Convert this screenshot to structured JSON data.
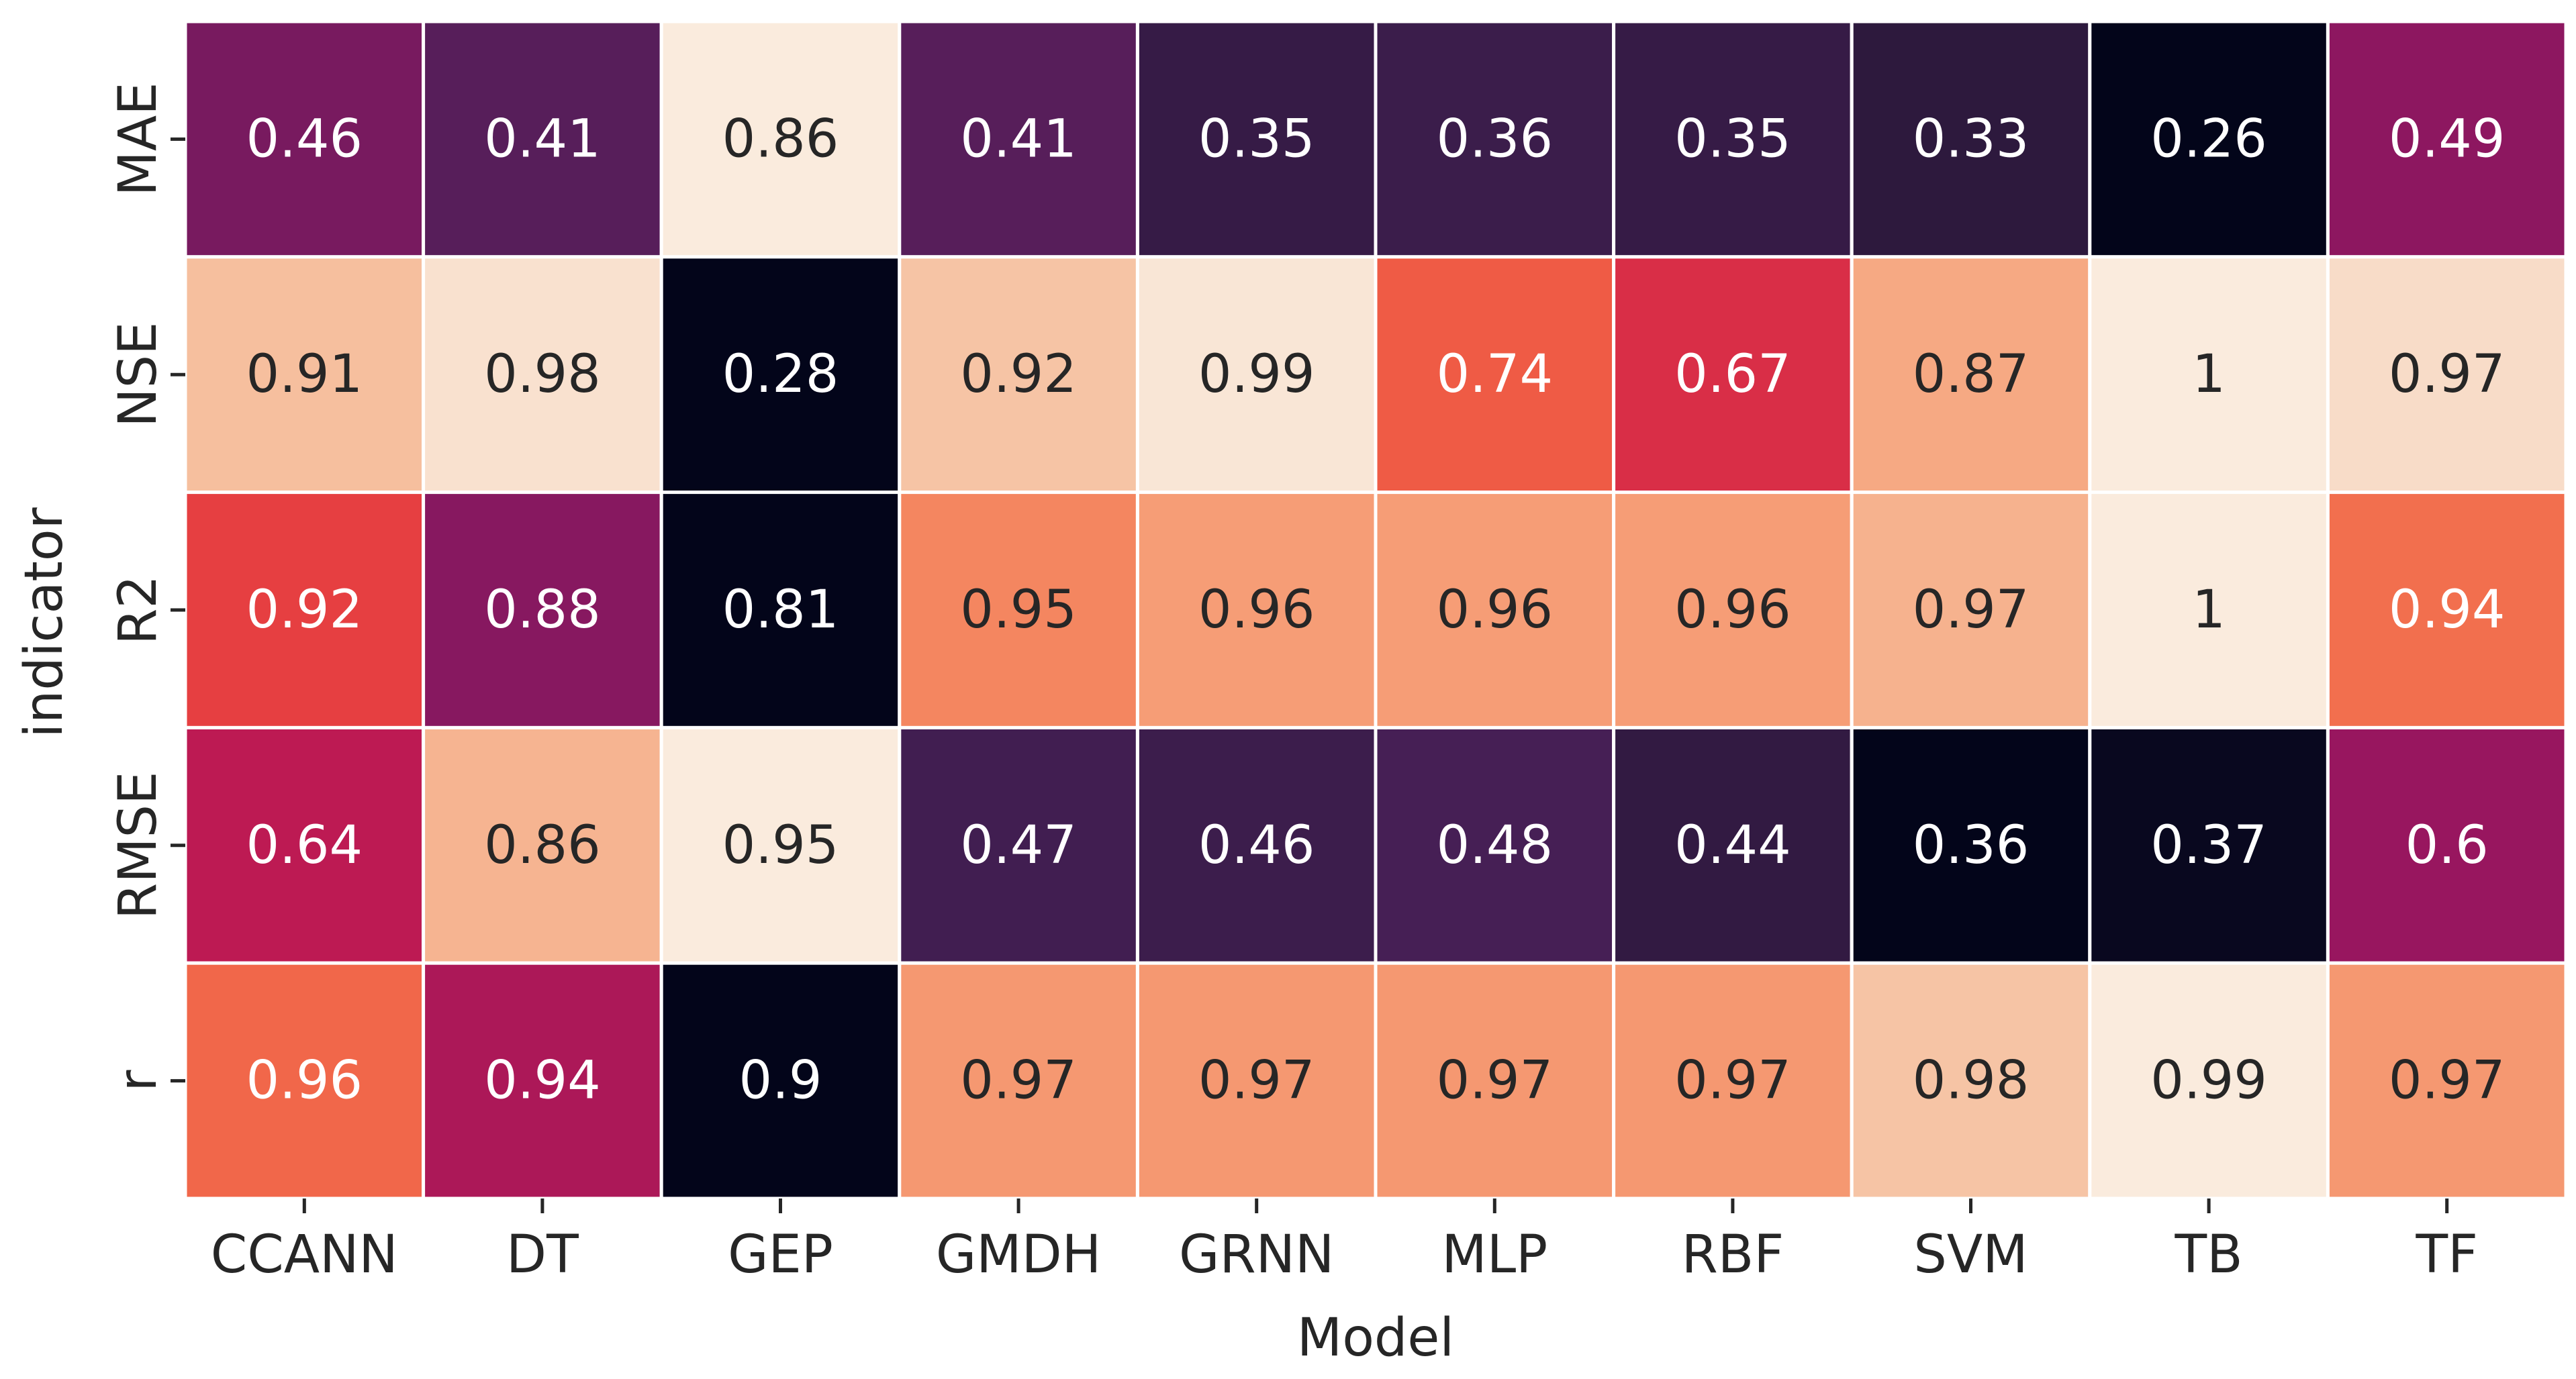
{
  "chart_data": {
    "type": "heatmap",
    "title": "",
    "xlabel": "Model",
    "ylabel": "indicator",
    "x_categories": [
      "CCANN",
      "DT",
      "GEP",
      "GMDH",
      "GRNN",
      "MLP",
      "RBF",
      "SVM",
      "TB",
      "TF"
    ],
    "y_categories": [
      "MAE",
      "NSE",
      "R2",
      "RMSE",
      "r"
    ],
    "cell_labels": [
      [
        "0.46",
        "0.41",
        "0.86",
        "0.41",
        "0.35",
        "0.36",
        "0.35",
        "0.33",
        "0.26",
        "0.49"
      ],
      [
        "0.91",
        "0.98",
        "0.28",
        "0.92",
        "0.99",
        "0.74",
        "0.67",
        "0.87",
        "1",
        "0.97"
      ],
      [
        "0.92",
        "0.88",
        "0.81",
        "0.95",
        "0.96",
        "0.96",
        "0.96",
        "0.97",
        "1",
        "0.94"
      ],
      [
        "0.64",
        "0.86",
        "0.95",
        "0.47",
        "0.46",
        "0.48",
        "0.44",
        "0.36",
        "0.37",
        "0.6"
      ],
      [
        "0.96",
        "0.94",
        "0.9",
        "0.97",
        "0.97",
        "0.97",
        "0.97",
        "0.98",
        "0.99",
        "0.97"
      ]
    ],
    "values": [
      [
        0.46,
        0.41,
        0.86,
        0.41,
        0.35,
        0.36,
        0.35,
        0.33,
        0.26,
        0.49
      ],
      [
        0.91,
        0.98,
        0.28,
        0.92,
        0.99,
        0.74,
        0.67,
        0.87,
        1.0,
        0.97
      ],
      [
        0.92,
        0.88,
        0.81,
        0.95,
        0.96,
        0.96,
        0.96,
        0.97,
        1.0,
        0.94
      ],
      [
        0.64,
        0.86,
        0.95,
        0.47,
        0.46,
        0.48,
        0.44,
        0.36,
        0.37,
        0.6
      ],
      [
        0.96,
        0.94,
        0.9,
        0.97,
        0.97,
        0.97,
        0.97,
        0.98,
        0.99,
        0.97
      ]
    ],
    "colormap": "rocket",
    "colorbar": false,
    "grid_line_color": "#ffffff",
    "row_scaling": "per-row"
  }
}
